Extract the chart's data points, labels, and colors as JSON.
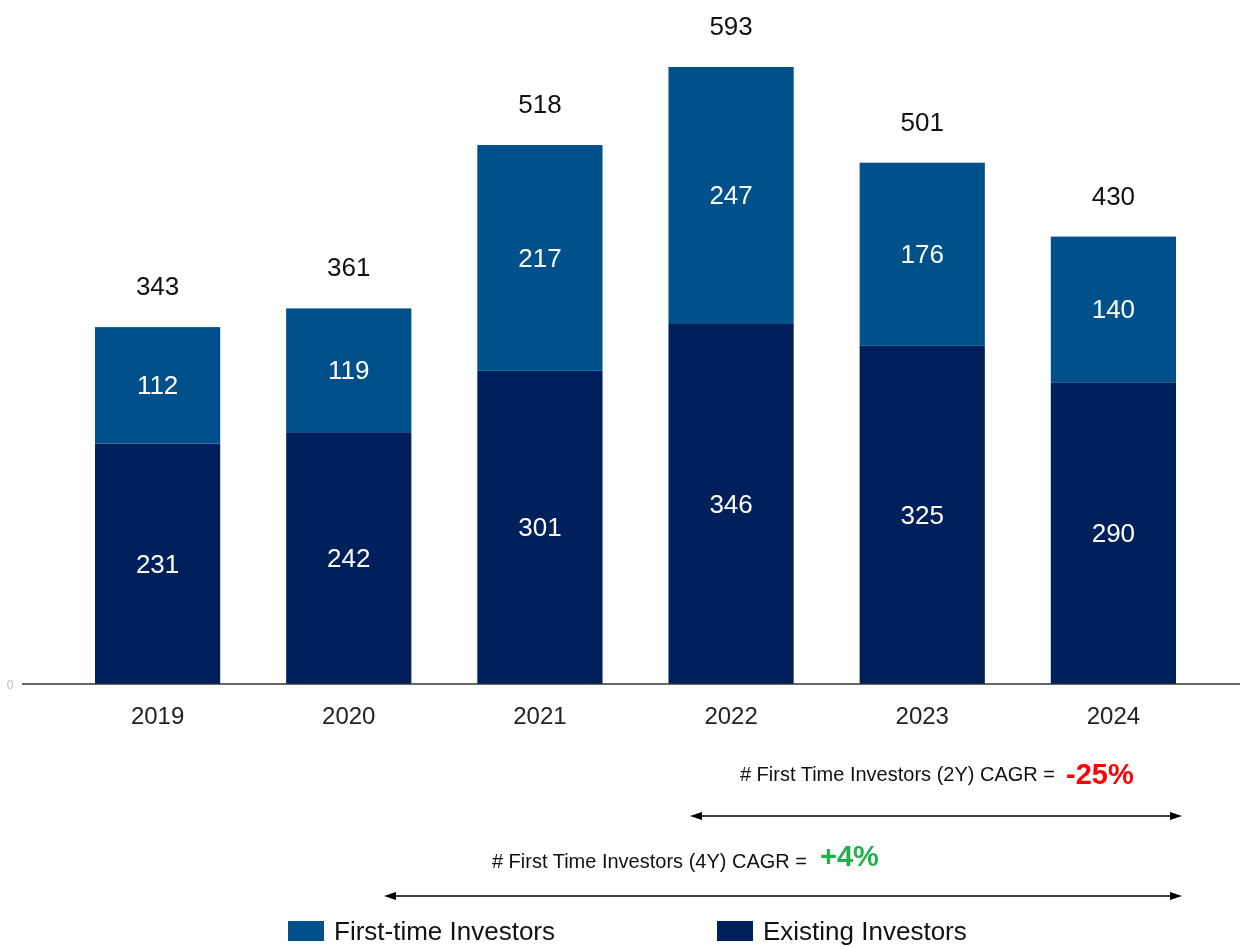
{
  "chart_data": {
    "type": "bar",
    "stacked": true,
    "categories": [
      "2019",
      "2020",
      "2021",
      "2022",
      "2023",
      "2024"
    ],
    "series": [
      {
        "name": "Existing Investors",
        "color": "#00205b",
        "values": [
          231,
          242,
          301,
          346,
          325,
          290
        ]
      },
      {
        "name": "First-time Investors",
        "color": "#00508c",
        "values": [
          112,
          119,
          217,
          247,
          176,
          140
        ]
      }
    ],
    "data_labels": true,
    "totals": [
      "343",
      "361",
      "518",
      "593",
      "501",
      "430"
    ],
    "legend": "bottom",
    "annotations": [
      "# First Time Investors (2Y) CAGR =",
      "-25%",
      "# First Time Investors (4Y) CAGR =",
      "+4%",
      "0"
    ]
  }
}
